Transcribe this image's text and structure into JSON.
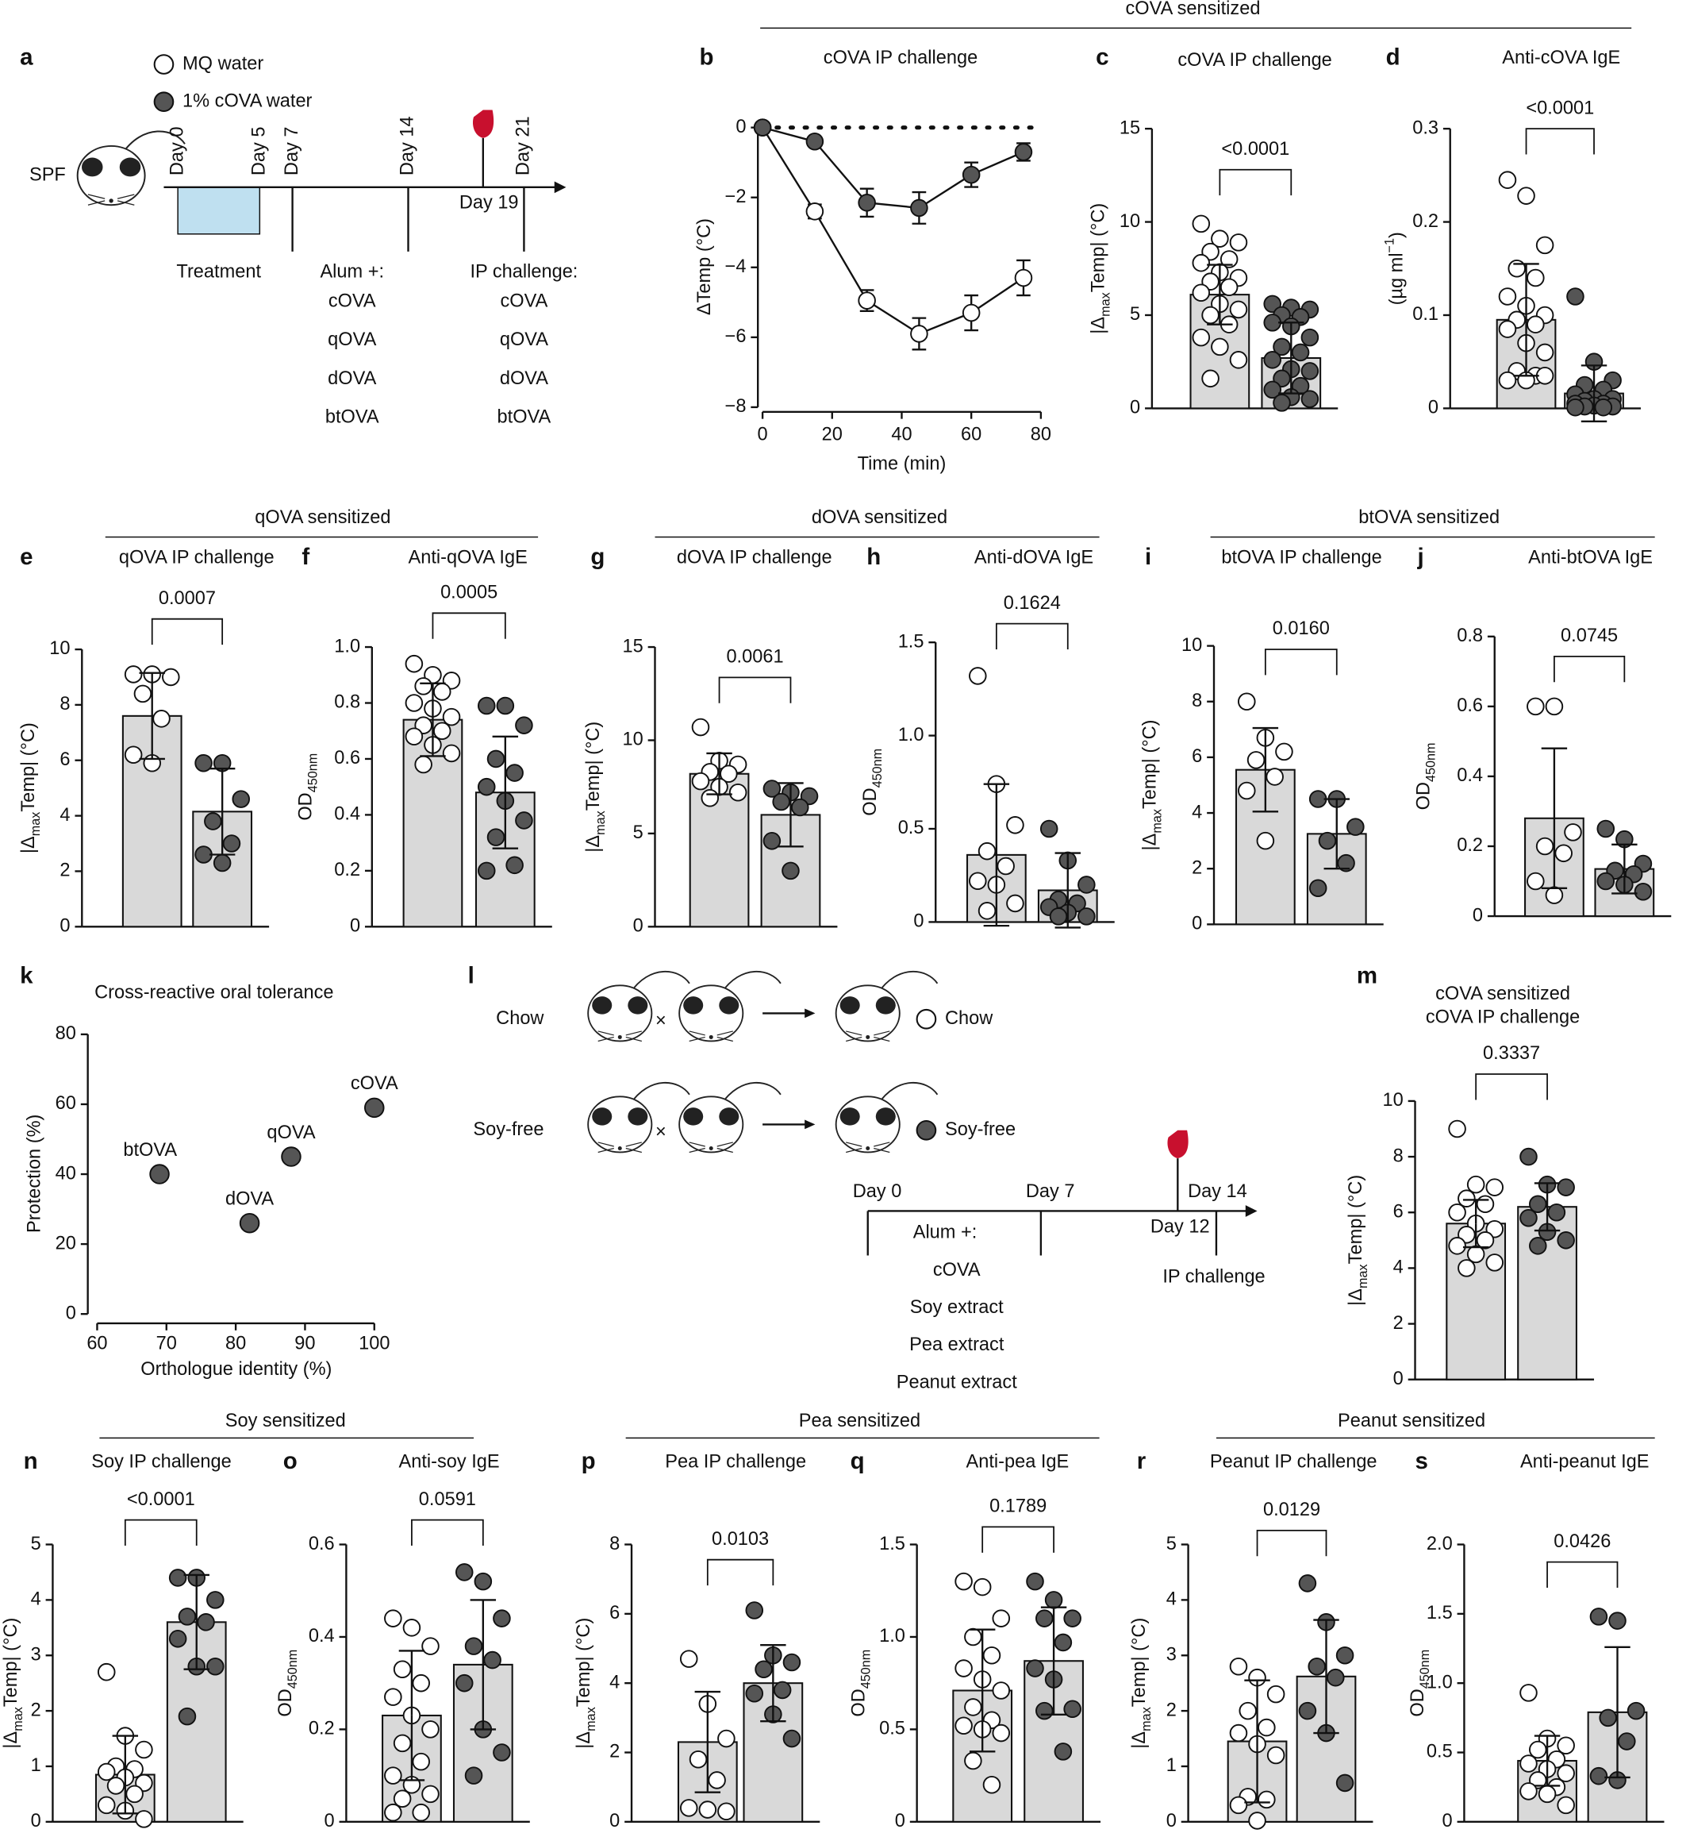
{
  "section_headers": [
    {
      "text": "cOVA sensitized"
    },
    {
      "text": "qOVA sensitized"
    },
    {
      "text": "dOVA sensitized"
    },
    {
      "text": "btOVA sensitized"
    },
    {
      "text": "Soy sensitized"
    },
    {
      "text": "Pea sensitized"
    },
    {
      "text": "Peanut sensitized"
    }
  ],
  "panel_a": {
    "panel": "a",
    "legend": [
      "MQ water",
      "1% cOVA water"
    ],
    "legend_colors": [
      "#ffffff",
      "#555555"
    ],
    "strain": "SPF",
    "days": [
      "Day 0",
      "Day 5",
      "Day 7",
      "Day 14",
      "Day 21"
    ],
    "bleed_day": "Day 19",
    "treatment": "Treatment",
    "alum": "Alum +:",
    "alum_antigens": [
      "cOVA",
      "qOVA",
      "dOVA",
      "btOVA"
    ],
    "challenge": "IP challenge:",
    "challenge_antigens": [
      "cOVA",
      "qOVA",
      "dOVA",
      "btOVA"
    ]
  },
  "panel_l": {
    "panel": "l",
    "diets": [
      "Chow",
      "Soy-free"
    ],
    "cross": "×",
    "legend": [
      "Chow",
      "Soy-free"
    ],
    "legend_colors": [
      "#ffffff",
      "#555555"
    ],
    "days": [
      "Day 0",
      "Day 7",
      "Day 14"
    ],
    "bleed_day": "Day 12",
    "alum": "Alum +:",
    "alum_antigens": [
      "cOVA",
      "Soy extract",
      "Pea extract",
      "Peanut extract"
    ],
    "challenge": "IP challenge"
  },
  "chart_data": [
    {
      "type": "line",
      "panel": "b",
      "title": "cOVA IP challenge",
      "xlabel": "Time (min)",
      "ylabel": "ΔTemp (°C)",
      "x": [
        0,
        15,
        30,
        45,
        60,
        75
      ],
      "xlim": [
        0,
        80
      ],
      "xticks": [
        0,
        20,
        40,
        60,
        80
      ],
      "ylim": [
        -8,
        0
      ],
      "yticks": [
        {
          "value": -8,
          "label": "−8"
        },
        {
          "value": -6,
          "label": "−6"
        },
        {
          "value": -4,
          "label": "−4"
        },
        {
          "value": -2,
          "label": "−2"
        },
        0
      ],
      "series": [
        {
          "color": "#ffffff",
          "values": [
            0,
            -2.4,
            -4.95,
            -5.9,
            -5.3,
            -4.3
          ],
          "errors": [
            0,
            0.2,
            0.3,
            0.45,
            0.5,
            0.5
          ]
        },
        {
          "color": "#555555",
          "values": [
            0,
            -0.4,
            -2.15,
            -2.3,
            -1.35,
            -0.7
          ],
          "errors": [
            0,
            0,
            0.4,
            0.45,
            0.35,
            0.25
          ]
        }
      ]
    },
    {
      "type": "bar",
      "panel": "c",
      "title": "cOVA IP challenge",
      "ylabel": [
        {
          "text": "|Δ"
        },
        {
          "text": "max",
          "sub": true
        },
        {
          "text": "Temp| (°C)"
        }
      ],
      "ylim": [
        0,
        15
      ],
      "yticks": [
        0,
        5,
        10,
        15
      ],
      "values": [
        6.1,
        2.7
      ],
      "errors": [
        1.6,
        1.9
      ],
      "colors": [
        "#ffffff",
        "#555555"
      ],
      "bar_color": "#d9d9d9",
      "p_value": "<0.0001",
      "points": [
        [
          9.9,
          9.1,
          8.9,
          8.4,
          8.0,
          7.8,
          7.3,
          7.0,
          6.8,
          6.5,
          6.2,
          5.6,
          5.3,
          5.0,
          4.5,
          3.8,
          3.3,
          2.6,
          1.6
        ],
        [
          5.6,
          5.4,
          5.3,
          5.0,
          4.9,
          4.6,
          4.4,
          3.8,
          3.3,
          3.0,
          2.6,
          2.1,
          2.0,
          1.6,
          1.2,
          1.0,
          0.6,
          0.5,
          0.3
        ]
      ]
    },
    {
      "type": "bar",
      "panel": "d",
      "title": "Anti-cOVA IgE",
      "ylabel": [
        {
          "text": "(µg ml"
        },
        {
          "text": "−1",
          "sup": true
        },
        {
          "text": ")"
        }
      ],
      "ylim": [
        0,
        0.3
      ],
      "yticks": [
        0,
        0.1,
        0.2,
        0.3
      ],
      "values": [
        0.095,
        0.016
      ],
      "errors": [
        0.06,
        0.03
      ],
      "colors": [
        "#ffffff",
        "#555555"
      ],
      "bar_color": "#d9d9d9",
      "p_value": "<0.0001",
      "points": [
        [
          0.245,
          0.228,
          0.175,
          0.15,
          0.14,
          0.12,
          0.11,
          0.1,
          0.095,
          0.09,
          0.085,
          0.07,
          0.06,
          0.04,
          0.035,
          0.03,
          0.03,
          0.035
        ],
        [
          0.12,
          0.05,
          0.03,
          0.025,
          0.02,
          0.015,
          0.01,
          0.01,
          0.008,
          0.005,
          0.005,
          0.003,
          0.002,
          0.002,
          0.001,
          0.001
        ]
      ]
    },
    {
      "type": "bar",
      "panel": "e",
      "title": "qOVA IP challenge",
      "ylabel": [
        {
          "text": "|Δ"
        },
        {
          "text": "max",
          "sub": true
        },
        {
          "text": "Temp| (°C)"
        }
      ],
      "ylim": [
        0,
        10
      ],
      "yticks": [
        0,
        2,
        4,
        6,
        8,
        10
      ],
      "values": [
        7.6,
        4.15
      ],
      "errors": [
        1.55,
        1.55
      ],
      "colors": [
        "#ffffff",
        "#555555"
      ],
      "bar_color": "#d9d9d9",
      "p_value": "0.0007",
      "points": [
        [
          9.1,
          9.1,
          9.0,
          8.4,
          7.5,
          6.2,
          5.9
        ],
        [
          5.9,
          5.9,
          4.6,
          3.8,
          3.0,
          2.6,
          2.3
        ]
      ]
    },
    {
      "type": "bar",
      "panel": "f",
      "title": "Anti-qOVA IgE",
      "ylabel": [
        {
          "text": "OD"
        },
        {
          "text": "450nm",
          "sub": true
        }
      ],
      "ylim": [
        0,
        1
      ],
      "yticks": [
        0,
        0.2,
        0.4,
        0.6,
        0.8,
        {
          "value": 1,
          "label": "1.0"
        }
      ],
      "values": [
        0.74,
        0.48
      ],
      "errors": [
        0.13,
        0.2
      ],
      "colors": [
        "#ffffff",
        "#555555"
      ],
      "bar_color": "#d9d9d9",
      "p_value": "0.0005",
      "points": [
        [
          0.94,
          0.9,
          0.88,
          0.86,
          0.84,
          0.8,
          0.78,
          0.75,
          0.72,
          0.7,
          0.68,
          0.65,
          0.62,
          0.58
        ],
        [
          0.79,
          0.79,
          0.72,
          0.6,
          0.55,
          0.5,
          0.45,
          0.38,
          0.32,
          0.22,
          0.2
        ]
      ]
    },
    {
      "type": "bar",
      "panel": "g",
      "title": "dOVA IP challenge",
      "ylabel": [
        {
          "text": "|Δ"
        },
        {
          "text": "max",
          "sub": true
        },
        {
          "text": "Temp| (°C)"
        }
      ],
      "ylim": [
        0,
        15
      ],
      "yticks": [
        0,
        5,
        10,
        15
      ],
      "values": [
        8.2,
        6.0
      ],
      "errors": [
        1.1,
        1.7
      ],
      "colors": [
        "#ffffff",
        "#555555"
      ],
      "bar_color": "#d9d9d9",
      "p_value": "0.0061",
      "points": [
        [
          10.7,
          8.9,
          8.7,
          8.3,
          8.2,
          7.8,
          7.5,
          7.2,
          6.9
        ],
        [
          7.4,
          7.2,
          7.0,
          6.7,
          6.4,
          4.6,
          3.0
        ]
      ]
    },
    {
      "type": "bar",
      "panel": "h",
      "title": "Anti-dOVA IgE",
      "ylabel": [
        {
          "text": "OD"
        },
        {
          "text": "450nm",
          "sub": true
        }
      ],
      "ylim": [
        0,
        1.5
      ],
      "yticks": [
        0,
        0.5,
        {
          "value": 1,
          "label": "1.0"
        },
        1.5
      ],
      "values": [
        0.36,
        0.17
      ],
      "errors": [
        0.38,
        0.2
      ],
      "colors": [
        "#ffffff",
        "#555555"
      ],
      "bar_color": "#d9d9d9",
      "p_value": "0.1624",
      "points": [
        [
          1.32,
          0.74,
          0.52,
          0.38,
          0.3,
          0.22,
          0.2,
          0.1,
          0.06
        ],
        [
          0.5,
          0.33,
          0.2,
          0.12,
          0.1,
          0.08,
          0.05,
          0.03,
          0.03
        ]
      ]
    },
    {
      "type": "bar",
      "panel": "i",
      "title": "btOVA IP challenge",
      "ylabel": [
        {
          "text": "|Δ"
        },
        {
          "text": "max",
          "sub": true
        },
        {
          "text": "Temp| (°C)"
        }
      ],
      "ylim": [
        0,
        10
      ],
      "yticks": [
        0,
        2,
        4,
        6,
        8,
        10
      ],
      "values": [
        5.55,
        3.25
      ],
      "errors": [
        1.5,
        1.25
      ],
      "colors": [
        "#ffffff",
        "#555555"
      ],
      "bar_color": "#d9d9d9",
      "p_value": "0.0160",
      "points": [
        [
          8.0,
          6.7,
          6.2,
          5.9,
          5.3,
          4.8,
          3.0
        ],
        [
          4.5,
          4.5,
          3.5,
          3.0,
          2.2,
          1.3
        ]
      ]
    },
    {
      "type": "bar",
      "panel": "j",
      "title": "Anti-btOVA IgE",
      "ylabel": [
        {
          "text": "OD"
        },
        {
          "text": "450nm",
          "sub": true
        }
      ],
      "ylim": [
        0,
        0.8
      ],
      "yticks": [
        0,
        0.2,
        0.4,
        0.6,
        0.8
      ],
      "values": [
        0.28,
        0.135
      ],
      "errors": [
        0.2,
        0.07
      ],
      "colors": [
        "#ffffff",
        "#555555"
      ],
      "bar_color": "#d9d9d9",
      "p_value": "0.0745",
      "points": [
        [
          0.6,
          0.6,
          0.24,
          0.2,
          0.18,
          0.1,
          0.06
        ],
        [
          0.25,
          0.22,
          0.15,
          0.13,
          0.12,
          0.1,
          0.09,
          0.07
        ]
      ]
    },
    {
      "type": "scatter",
      "panel": "k",
      "title": "Cross-reactive oral tolerance",
      "xlabel": "Orthologue identity (%)",
      "ylabel": "Protection (%)",
      "x": [
        69,
        82,
        88,
        100
      ],
      "values": [
        40,
        26,
        45,
        59
      ],
      "labels": [
        "btOVA",
        "dOVA",
        "qOVA",
        "cOVA"
      ],
      "color": "#555555",
      "xlim": [
        60,
        100
      ],
      "xticks": [
        60,
        70,
        80,
        90,
        100
      ],
      "ylim": [
        0,
        80
      ],
      "yticks": [
        0,
        20,
        40,
        60,
        80
      ]
    },
    {
      "type": "bar",
      "panel": "m",
      "title": "cOVA sensitized",
      "subtitle": "cOVA IP challenge",
      "ylabel": [
        {
          "text": "|Δ"
        },
        {
          "text": "max",
          "sub": true
        },
        {
          "text": "Temp| (°C)"
        }
      ],
      "ylim": [
        0,
        10
      ],
      "yticks": [
        0,
        2,
        4,
        6,
        8,
        10
      ],
      "values": [
        5.6,
        6.2
      ],
      "errors": [
        0.85,
        0.85
      ],
      "colors": [
        "#ffffff",
        "#555555"
      ],
      "bar_color": "#d9d9d9",
      "p_value": "0.3337",
      "points": [
        [
          9.0,
          7.0,
          6.9,
          6.5,
          6.3,
          6.0,
          5.6,
          5.4,
          5.2,
          5.0,
          4.8,
          4.5,
          4.2,
          4.0
        ],
        [
          8.0,
          7.0,
          6.9,
          6.3,
          6.0,
          5.8,
          5.3,
          5.0,
          4.8
        ]
      ]
    },
    {
      "type": "bar",
      "panel": "n",
      "title": "Soy IP challenge",
      "ylabel": [
        {
          "text": "|Δ"
        },
        {
          "text": "max",
          "sub": true
        },
        {
          "text": "Temp| (°C)"
        }
      ],
      "ylim": [
        0,
        5
      ],
      "yticks": [
        0,
        1,
        2,
        3,
        4,
        5
      ],
      "values": [
        0.85,
        3.6
      ],
      "errors": [
        0.7,
        0.85
      ],
      "colors": [
        "#ffffff",
        "#555555"
      ],
      "bar_color": "#d9d9d9",
      "p_value": "<0.0001",
      "points": [
        [
          2.7,
          1.55,
          1.3,
          1.0,
          0.95,
          0.9,
          0.8,
          0.7,
          0.65,
          0.5,
          0.3,
          0.2,
          0.05
        ],
        [
          4.4,
          4.4,
          4.0,
          3.7,
          3.6,
          3.3,
          2.8,
          2.8,
          1.9
        ]
      ]
    },
    {
      "type": "bar",
      "panel": "o",
      "title": "Anti-soy IgE",
      "ylabel": [
        {
          "text": "OD"
        },
        {
          "text": "450nm",
          "sub": true
        }
      ],
      "ylim": [
        0,
        0.6
      ],
      "yticks": [
        0,
        0.2,
        0.4,
        0.6
      ],
      "values": [
        0.23,
        0.34
      ],
      "errors": [
        0.14,
        0.14
      ],
      "colors": [
        "#ffffff",
        "#555555"
      ],
      "bar_color": "#d9d9d9",
      "p_value": "0.0591",
      "points": [
        [
          0.44,
          0.42,
          0.38,
          0.33,
          0.3,
          0.27,
          0.23,
          0.2,
          0.17,
          0.13,
          0.1,
          0.08,
          0.06,
          0.05,
          0.02,
          0.02
        ],
        [
          0.54,
          0.52,
          0.44,
          0.38,
          0.35,
          0.3,
          0.2,
          0.15,
          0.1
        ]
      ]
    },
    {
      "type": "bar",
      "panel": "p",
      "title": "Pea IP challenge",
      "ylabel": [
        {
          "text": "|Δ"
        },
        {
          "text": "max",
          "sub": true
        },
        {
          "text": "Temp| (°C)"
        }
      ],
      "ylim": [
        0,
        8
      ],
      "yticks": [
        0,
        2,
        4,
        6,
        8
      ],
      "values": [
        2.3,
        4.0
      ],
      "errors": [
        1.45,
        1.1
      ],
      "colors": [
        "#ffffff",
        "#555555"
      ],
      "bar_color": "#d9d9d9",
      "p_value": "0.0103",
      "points": [
        [
          4.7,
          3.4,
          2.4,
          1.8,
          1.2,
          0.4,
          0.35,
          0.3
        ],
        [
          6.1,
          4.8,
          4.6,
          4.4,
          3.8,
          3.7,
          3.1,
          2.4
        ]
      ]
    },
    {
      "type": "bar",
      "panel": "q",
      "title": "Anti-pea IgE",
      "ylabel": [
        {
          "text": "OD"
        },
        {
          "text": "450nm",
          "sub": true
        }
      ],
      "ylim": [
        0,
        1.5
      ],
      "yticks": [
        0,
        0.5,
        {
          "value": 1,
          "label": "1.0"
        },
        1.5
      ],
      "values": [
        0.71,
        0.87
      ],
      "errors": [
        0.33,
        0.29
      ],
      "colors": [
        "#ffffff",
        "#555555"
      ],
      "bar_color": "#d9d9d9",
      "p_value": "0.1789",
      "points": [
        [
          1.3,
          1.27,
          1.1,
          1.0,
          0.9,
          0.83,
          0.77,
          0.71,
          0.62,
          0.55,
          0.52,
          0.5,
          0.48,
          0.33,
          0.2
        ],
        [
          1.3,
          1.2,
          1.1,
          1.1,
          0.97,
          0.83,
          0.77,
          0.61,
          0.6,
          0.38
        ]
      ]
    },
    {
      "type": "bar",
      "panel": "r",
      "title": "Peanut IP challenge",
      "ylabel": [
        {
          "text": "|Δ"
        },
        {
          "text": "max",
          "sub": true
        },
        {
          "text": "Temp| (°C)"
        }
      ],
      "ylim": [
        0,
        5
      ],
      "yticks": [
        0,
        1,
        2,
        3,
        4,
        5
      ],
      "values": [
        1.45,
        2.62
      ],
      "errors": [
        1.1,
        1.02
      ],
      "colors": [
        "#ffffff",
        "#555555"
      ],
      "bar_color": "#d9d9d9",
      "p_value": "0.0129",
      "points": [
        [
          2.8,
          2.6,
          2.3,
          2.0,
          1.7,
          1.6,
          1.4,
          1.2,
          0.45,
          0.4,
          0.3,
          0.02
        ],
        [
          4.3,
          3.6,
          3.0,
          2.8,
          2.6,
          2.0,
          1.6,
          0.7
        ]
      ]
    },
    {
      "type": "bar",
      "panel": "s",
      "title": "Anti-peanut IgE",
      "ylabel": [
        {
          "text": "OD"
        },
        {
          "text": "450nm",
          "sub": true
        }
      ],
      "ylim": [
        0,
        2
      ],
      "yticks": [
        0,
        0.5,
        {
          "value": 1,
          "label": "1.0"
        },
        1.5,
        {
          "value": 2,
          "label": "2.0"
        }
      ],
      "values": [
        0.44,
        0.79
      ],
      "errors": [
        0.18,
        0.47
      ],
      "colors": [
        "#ffffff",
        "#555555"
      ],
      "bar_color": "#d9d9d9",
      "p_value": "0.0426",
      "points": [
        [
          0.93,
          0.6,
          0.55,
          0.52,
          0.45,
          0.42,
          0.38,
          0.35,
          0.3,
          0.25,
          0.22,
          0.2,
          0.12
        ],
        [
          1.48,
          1.45,
          0.8,
          0.75,
          0.58,
          0.33,
          0.3
        ]
      ]
    }
  ]
}
